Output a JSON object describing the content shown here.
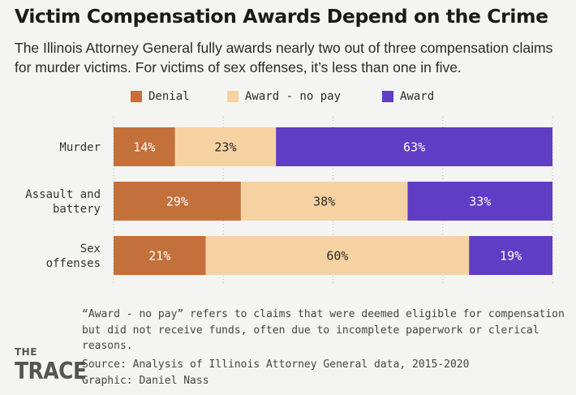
{
  "title": "Victim Compensation Awards Depend on the Crime",
  "subtitle": "The Illinois Attorney General fully awards nearly two out of three compensation claims for murder victims. For victims of sex offenses, it’s less than one in five.",
  "legend": [
    {
      "label": "Denial",
      "color": "#c4703a"
    },
    {
      "label": "Award - no pay",
      "color": "#f6d2a2"
    },
    {
      "label": "Award",
      "color": "#5f3dc4"
    }
  ],
  "chart_data": {
    "type": "bar",
    "orientation": "horizontal",
    "stacked": true,
    "unit": "%",
    "xlim": [
      0,
      100
    ],
    "categories": [
      [
        "Murder"
      ],
      [
        "Assault and",
        "battery"
      ],
      [
        "Sex",
        "offenses"
      ]
    ],
    "series": [
      {
        "name": "Denial",
        "color": "#c4703a",
        "label_color": "#ffffff",
        "values": [
          14,
          29,
          21
        ]
      },
      {
        "name": "Award - no pay",
        "color": "#f6d2a2",
        "label_color": "#2b2b2b",
        "values": [
          23,
          38,
          60
        ]
      },
      {
        "name": "Award",
        "color": "#5f3dc4",
        "label_color": "#ffffff",
        "values": [
          63,
          33,
          19
        ]
      }
    ],
    "grid": true,
    "legend_position": "top"
  },
  "footnote": "“Award - no pay” refers to claims that were deemed eligible for compensation but did not receive funds, often due to incomplete paperwork or clerical reasons.",
  "source": "Source: Analysis of Illinois Attorney General data, 2015-2020",
  "credit": "Graphic: Daniel Nass",
  "logo": {
    "top": "THE",
    "bottom": "TRACE"
  }
}
